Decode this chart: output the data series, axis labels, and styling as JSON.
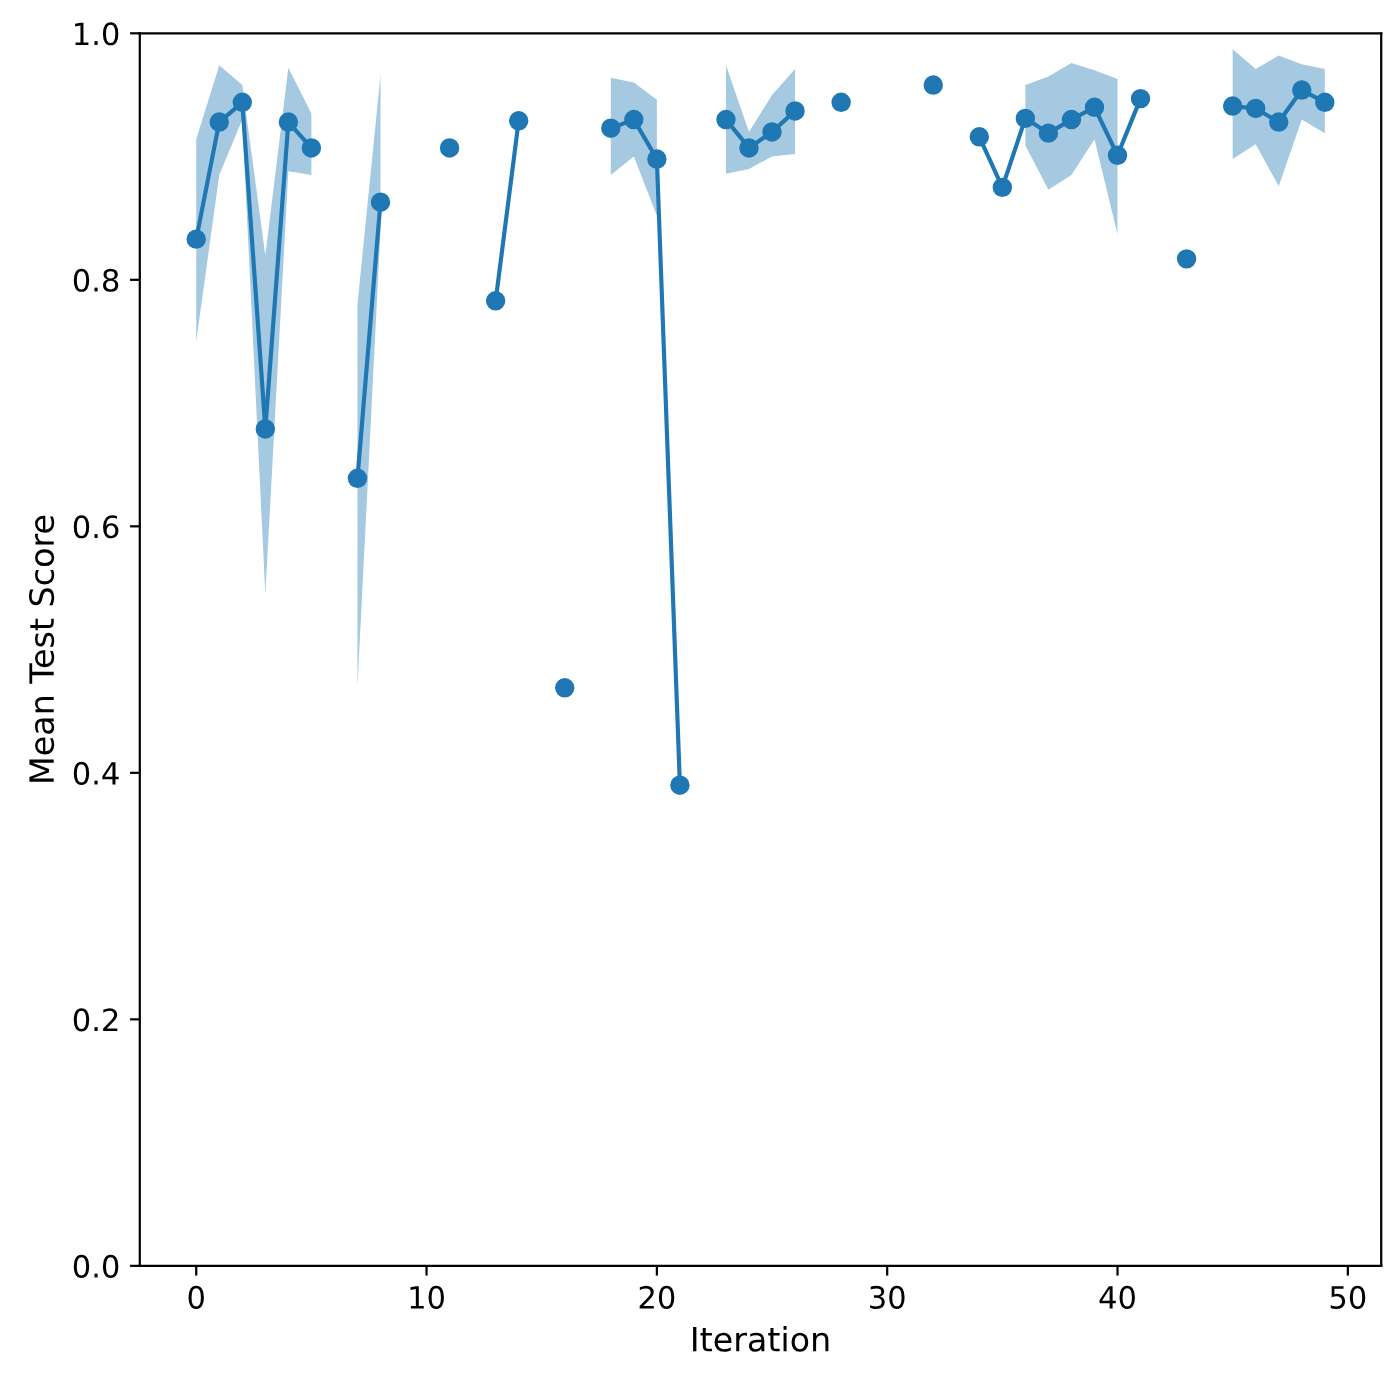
{
  "chart_data": {
    "type": "line",
    "xlabel": "Iteration",
    "ylabel": "Mean Test Score",
    "x": [
      0,
      1,
      2,
      3,
      4,
      5,
      6,
      7,
      8,
      9,
      10,
      11,
      12,
      13,
      14,
      15,
      16,
      17,
      18,
      19,
      20,
      21,
      22,
      23,
      24,
      25,
      26,
      27,
      28,
      29,
      30,
      31,
      32,
      33,
      34,
      35,
      36,
      37,
      38,
      39,
      40,
      41,
      42,
      43,
      44,
      45,
      46,
      47,
      48,
      49
    ],
    "series": [
      {
        "color": "#1f77b4",
        "values": [
          0.833,
          0.928,
          0.944,
          0.679,
          0.928,
          0.907,
          null,
          0.639,
          0.863,
          null,
          null,
          0.907,
          null,
          0.783,
          0.929,
          null,
          0.469,
          null,
          0.923,
          0.93,
          0.898,
          0.39,
          null,
          0.93,
          0.907,
          0.92,
          0.937,
          null,
          0.944,
          null,
          null,
          null,
          0.958,
          null,
          0.916,
          0.875,
          0.931,
          0.919,
          0.93,
          0.94,
          0.901,
          0.947,
          null,
          0.817,
          null,
          0.941,
          0.939,
          0.928,
          0.954,
          0.944
        ],
        "lower": [
          0.75,
          0.885,
          0.93,
          0.545,
          0.888,
          0.885,
          null,
          0.47,
          0.84,
          null,
          null,
          null,
          null,
          null,
          null,
          null,
          null,
          null,
          0.885,
          0.9,
          0.852,
          null,
          null,
          0.886,
          0.89,
          0.9,
          0.902,
          null,
          null,
          null,
          null,
          null,
          null,
          null,
          null,
          null,
          0.909,
          0.873,
          0.885,
          0.914,
          0.837,
          null,
          null,
          null,
          null,
          0.898,
          0.91,
          0.876,
          0.93,
          0.919
        ],
        "upper": [
          0.914,
          0.974,
          0.958,
          0.82,
          0.972,
          0.935,
          null,
          0.78,
          0.966,
          null,
          null,
          null,
          null,
          null,
          null,
          null,
          null,
          null,
          0.964,
          0.96,
          0.946,
          null,
          null,
          0.974,
          0.92,
          0.95,
          0.971,
          null,
          null,
          null,
          null,
          null,
          null,
          null,
          null,
          null,
          0.958,
          0.965,
          0.976,
          0.97,
          0.963,
          null,
          null,
          null,
          null,
          0.987,
          0.971,
          0.982,
          0.975,
          0.971
        ]
      }
    ],
    "marker": "circle",
    "line_style": "solid",
    "grid": false,
    "legend": false,
    "xlim": [
      -2.45,
      51.45
    ],
    "xticks": [
      0,
      10,
      20,
      30,
      40,
      50
    ],
    "ylim": [
      0,
      1
    ],
    "yticks": [
      {
        "value": 0,
        "label": "0.0"
      },
      {
        "value": 0.2,
        "label": "0.2"
      },
      {
        "value": 0.4,
        "label": "0.4"
      },
      {
        "value": 0.6,
        "label": "0.6"
      },
      {
        "value": 0.8,
        "label": "0.8"
      },
      {
        "value": 1,
        "label": "1.0"
      }
    ]
  }
}
